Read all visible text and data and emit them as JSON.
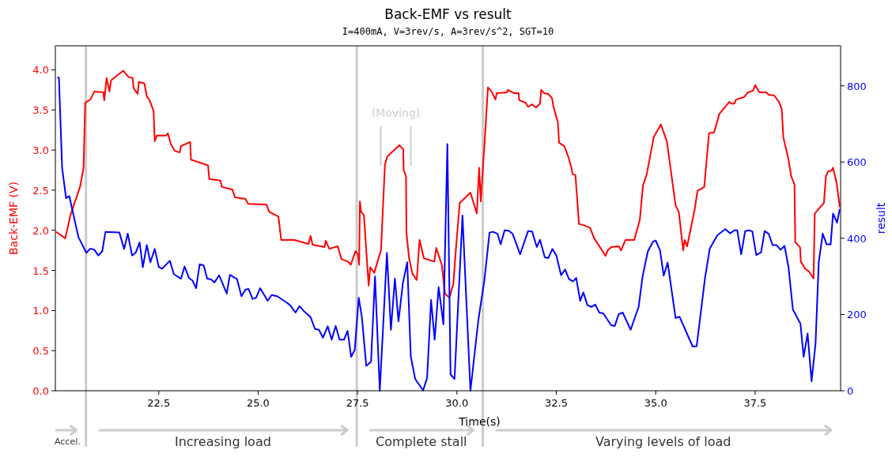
{
  "chart_data": {
    "type": "line",
    "title": "Back-EMF vs result",
    "subtitle": "I=400mA, V=3rev/s, A=3rev/s^2, SGT=10",
    "xlabel": "Time(s)",
    "ylabel": "Back-EMF (V)",
    "y2label": "result",
    "xlim": [
      19.9,
      39.65
    ],
    "xticks": [
      22.5,
      {
        "value": 25,
        "label": "25.0"
      },
      27.5,
      {
        "value": 30,
        "label": "30.0"
      },
      32.5,
      {
        "value": 35,
        "label": "35.0"
      },
      37.5
    ],
    "ylim": [
      0,
      4.3
    ],
    "yticks": [
      {
        "value": 0,
        "label": "0.0"
      },
      0.5,
      {
        "value": 1,
        "label": "1.0"
      },
      1.5,
      {
        "value": 2,
        "label": "2.0"
      },
      2.5,
      {
        "value": 3,
        "label": "3.0"
      },
      3.5,
      {
        "value": 4,
        "label": "4.0"
      }
    ],
    "y2lim": [
      0,
      905
    ],
    "y2ticks": [
      0,
      200,
      400,
      600,
      800
    ],
    "grid": false,
    "line_style": "solid",
    "marker": "none",
    "ref_lines": [
      {
        "axis": "x",
        "value": 20.67,
        "color": "#cccccc"
      },
      {
        "axis": "x",
        "value": 27.48,
        "color": "#cccccc"
      },
      {
        "axis": "x",
        "value": 30.65,
        "color": "#cccccc"
      }
    ],
    "annotations": [
      "Accel.",
      "Increasing load",
      "Complete stall",
      "Varying levels of load",
      "(Moving)"
    ],
    "series": [
      {
        "color": "#ff0000",
        "x": [
          19.92,
          20.15,
          20.28,
          20.52,
          20.61,
          20.65,
          20.78,
          20.88,
          21.11,
          21.13,
          21.19,
          21.26,
          21.3,
          21.61,
          21.74,
          21.84,
          21.87,
          21.97,
          22.0,
          22.14,
          22.2,
          22.27,
          22.37,
          22.4,
          22.45,
          22.68,
          22.73,
          22.8,
          22.9,
          23.03,
          23.06,
          23.29,
          23.31,
          23.74,
          23.77,
          24.05,
          24.09,
          24.35,
          24.42,
          24.68,
          24.75,
          25.21,
          25.28,
          25.51,
          25.58,
          25.91,
          26.27,
          26.32,
          26.37,
          26.67,
          26.7,
          26.79,
          27.0,
          27.1,
          27.26,
          27.33,
          27.45,
          27.51,
          27.54,
          27.56,
          27.59,
          27.66,
          27.78,
          27.82,
          27.92,
          28.09,
          28.19,
          28.25,
          28.55,
          28.65,
          28.66,
          28.72,
          28.73,
          28.8,
          28.88,
          28.99,
          29.06,
          29.17,
          29.43,
          29.48,
          29.62,
          29.7,
          29.81,
          29.91,
          29.97,
          30.07,
          30.34,
          30.5,
          30.56,
          30.6,
          30.7,
          30.78,
          30.87,
          30.97,
          31.0,
          31.26,
          31.28,
          31.43,
          31.55,
          31.57,
          31.73,
          31.79,
          31.89,
          31.99,
          32.09,
          32.12,
          32.19,
          32.29,
          32.39,
          32.43,
          32.54,
          32.57,
          32.7,
          32.8,
          32.87,
          32.91,
          32.98,
          33.07,
          33.21,
          33.35,
          33.45,
          33.61,
          33.74,
          33.79,
          33.88,
          34.07,
          34.13,
          34.24,
          34.46,
          34.6,
          34.68,
          34.77,
          34.95,
          35.13,
          35.28,
          35.5,
          35.58,
          35.69,
          35.73,
          35.79,
          35.98,
          36.05,
          36.22,
          36.34,
          36.47,
          36.6,
          36.85,
          36.9,
          36.98,
          37.02,
          37.22,
          37.32,
          37.45,
          37.5,
          37.61,
          37.78,
          37.84,
          37.98,
          38.1,
          38.17,
          38.21,
          38.34,
          38.41,
          38.49,
          38.51,
          38.63,
          38.65,
          38.76,
          38.85,
          38.97,
          39.0,
          39.23,
          39.28,
          39.33,
          39.43,
          39.46,
          39.55,
          39.63
        ],
        "values": [
          1.98,
          1.9,
          2.19,
          2.54,
          2.78,
          3.59,
          3.63,
          3.73,
          3.72,
          3.62,
          3.9,
          3.73,
          3.87,
          3.99,
          3.91,
          3.9,
          3.77,
          3.7,
          3.85,
          3.83,
          3.67,
          3.62,
          3.49,
          3.11,
          3.18,
          3.18,
          3.21,
          3.08,
          2.99,
          2.97,
          3.05,
          3.1,
          2.88,
          2.81,
          2.64,
          2.62,
          2.54,
          2.51,
          2.41,
          2.39,
          2.33,
          2.32,
          2.23,
          2.17,
          1.88,
          1.88,
          1.83,
          1.93,
          1.82,
          1.79,
          1.87,
          1.77,
          1.8,
          1.64,
          1.61,
          1.57,
          1.74,
          1.7,
          1.57,
          2.36,
          2.23,
          2.19,
          1.31,
          1.54,
          1.47,
          1.75,
          2.82,
          2.92,
          3.06,
          3.01,
          2.75,
          2.67,
          1.97,
          1.64,
          1.46,
          1.38,
          1.88,
          1.65,
          1.61,
          1.78,
          1.57,
          1.21,
          1.16,
          1.33,
          1.74,
          2.34,
          2.47,
          2.21,
          2.78,
          2.36,
          3.13,
          3.78,
          3.73,
          3.63,
          3.71,
          3.72,
          3.75,
          3.71,
          3.71,
          3.62,
          3.59,
          3.54,
          3.57,
          3.53,
          3.58,
          3.75,
          3.71,
          3.7,
          3.65,
          3.54,
          3.34,
          3.09,
          3.05,
          2.92,
          2.8,
          2.7,
          2.69,
          2.08,
          2.06,
          2.03,
          1.9,
          1.78,
          1.68,
          1.75,
          1.79,
          1.8,
          1.75,
          1.88,
          1.88,
          2.13,
          2.56,
          2.69,
          3.16,
          3.32,
          3.11,
          2.31,
          2.23,
          1.75,
          1.88,
          1.8,
          2.26,
          2.49,
          2.54,
          3.21,
          3.22,
          3.45,
          3.6,
          3.58,
          3.58,
          3.63,
          3.66,
          3.72,
          3.74,
          3.81,
          3.72,
          3.72,
          3.69,
          3.68,
          3.6,
          3.51,
          3.16,
          2.88,
          2.67,
          2.57,
          1.85,
          1.79,
          1.61,
          1.52,
          1.49,
          1.4,
          2.21,
          2.34,
          2.67,
          2.73,
          2.75,
          2.78,
          2.59,
          2.29
        ]
      },
      {
        "color": "#0000ff",
        "axis": "y2",
        "x": [
          19.95,
          19.99,
          20.07,
          20.17,
          20.25,
          20.48,
          20.68,
          20.78,
          20.88,
          20.98,
          21.08,
          21.16,
          21.51,
          21.63,
          21.72,
          21.83,
          21.92,
          22.02,
          22.1,
          22.2,
          22.29,
          22.4,
          22.5,
          22.58,
          22.78,
          22.88,
          23.06,
          23.15,
          23.26,
          23.35,
          23.44,
          23.53,
          23.63,
          23.72,
          23.82,
          23.9,
          24.02,
          24.21,
          24.29,
          24.47,
          24.58,
          24.68,
          24.76,
          24.86,
          24.95,
          25.05,
          25.24,
          25.34,
          25.48,
          25.71,
          25.81,
          25.94,
          26.04,
          26.17,
          26.32,
          26.43,
          26.53,
          26.63,
          26.75,
          26.85,
          26.95,
          27.05,
          27.16,
          27.25,
          27.34,
          27.43,
          27.53,
          27.61,
          27.72,
          27.84,
          27.94,
          28.06,
          28.24,
          28.34,
          28.44,
          28.53,
          28.64,
          28.75,
          28.84,
          28.95,
          29.15,
          29.25,
          29.35,
          29.44,
          29.54,
          29.66,
          29.76,
          29.84,
          29.94,
          30.14,
          30.34,
          30.54,
          30.69,
          30.82,
          30.91,
          31.02,
          31.1,
          31.2,
          31.3,
          31.4,
          31.59,
          31.79,
          31.89,
          32.01,
          32.09,
          32.21,
          32.3,
          32.4,
          32.5,
          32.62,
          32.72,
          32.82,
          32.92,
          33.0,
          33.1,
          33.18,
          33.28,
          33.38,
          33.48,
          33.58,
          33.68,
          33.88,
          33.97,
          34.07,
          34.17,
          34.37,
          34.57,
          34.67,
          34.8,
          34.93,
          35.0,
          35.11,
          35.2,
          35.3,
          35.5,
          35.6,
          35.93,
          36.03,
          36.24,
          36.36,
          36.55,
          36.75,
          36.87,
          36.98,
          37.05,
          37.15,
          37.25,
          37.35,
          37.43,
          37.53,
          37.65,
          37.74,
          37.84,
          37.94,
          38.04,
          38.14,
          38.24,
          38.34,
          38.45,
          38.64,
          38.72,
          38.82,
          38.92,
          39.02,
          39.1,
          39.2,
          39.3,
          39.4,
          39.46,
          39.56,
          39.63
        ],
        "values": [
          823,
          821,
          585,
          505,
          511,
          403,
          362,
          373,
          370,
          355,
          366,
          417,
          415,
          372,
          412,
          355,
          362,
          389,
          324,
          382,
          337,
          372,
          325,
          320,
          341,
          306,
          294,
          326,
          296,
          289,
          269,
          332,
          329,
          294,
          292,
          284,
          303,
          255,
          304,
          293,
          248,
          265,
          267,
          241,
          244,
          269,
          236,
          251,
          248,
          232,
          224,
          205,
          222,
          207,
          193,
          162,
          160,
          139,
          169,
          134,
          170,
          134,
          134,
          157,
          89,
          107,
          244,
          193,
          65,
          76,
          300,
          0,
          362,
          160,
          294,
          182,
          282,
          337,
          89,
          31,
          1,
          34,
          238,
          134,
          272,
          174,
          647,
          43,
          31,
          460,
          0,
          186,
          289,
          415,
          417,
          412,
          384,
          421,
          420,
          412,
          358,
          419,
          418,
          377,
          396,
          350,
          348,
          372,
          355,
          303,
          318,
          293,
          287,
          296,
          236,
          258,
          225,
          220,
          226,
          205,
          203,
          172,
          170,
          201,
          205,
          160,
          220,
          300,
          365,
          391,
          394,
          368,
          302,
          336,
          191,
          194,
          116,
          117,
          296,
          373,
          408,
          424,
          413,
          421,
          421,
          358,
          419,
          421,
          418,
          356,
          363,
          419,
          412,
          382,
          382,
          370,
          380,
          324,
          213,
          176,
          89,
          150,
          25,
          124,
          337,
          412,
          384,
          384,
          465,
          441,
          477
        ]
      }
    ]
  }
}
